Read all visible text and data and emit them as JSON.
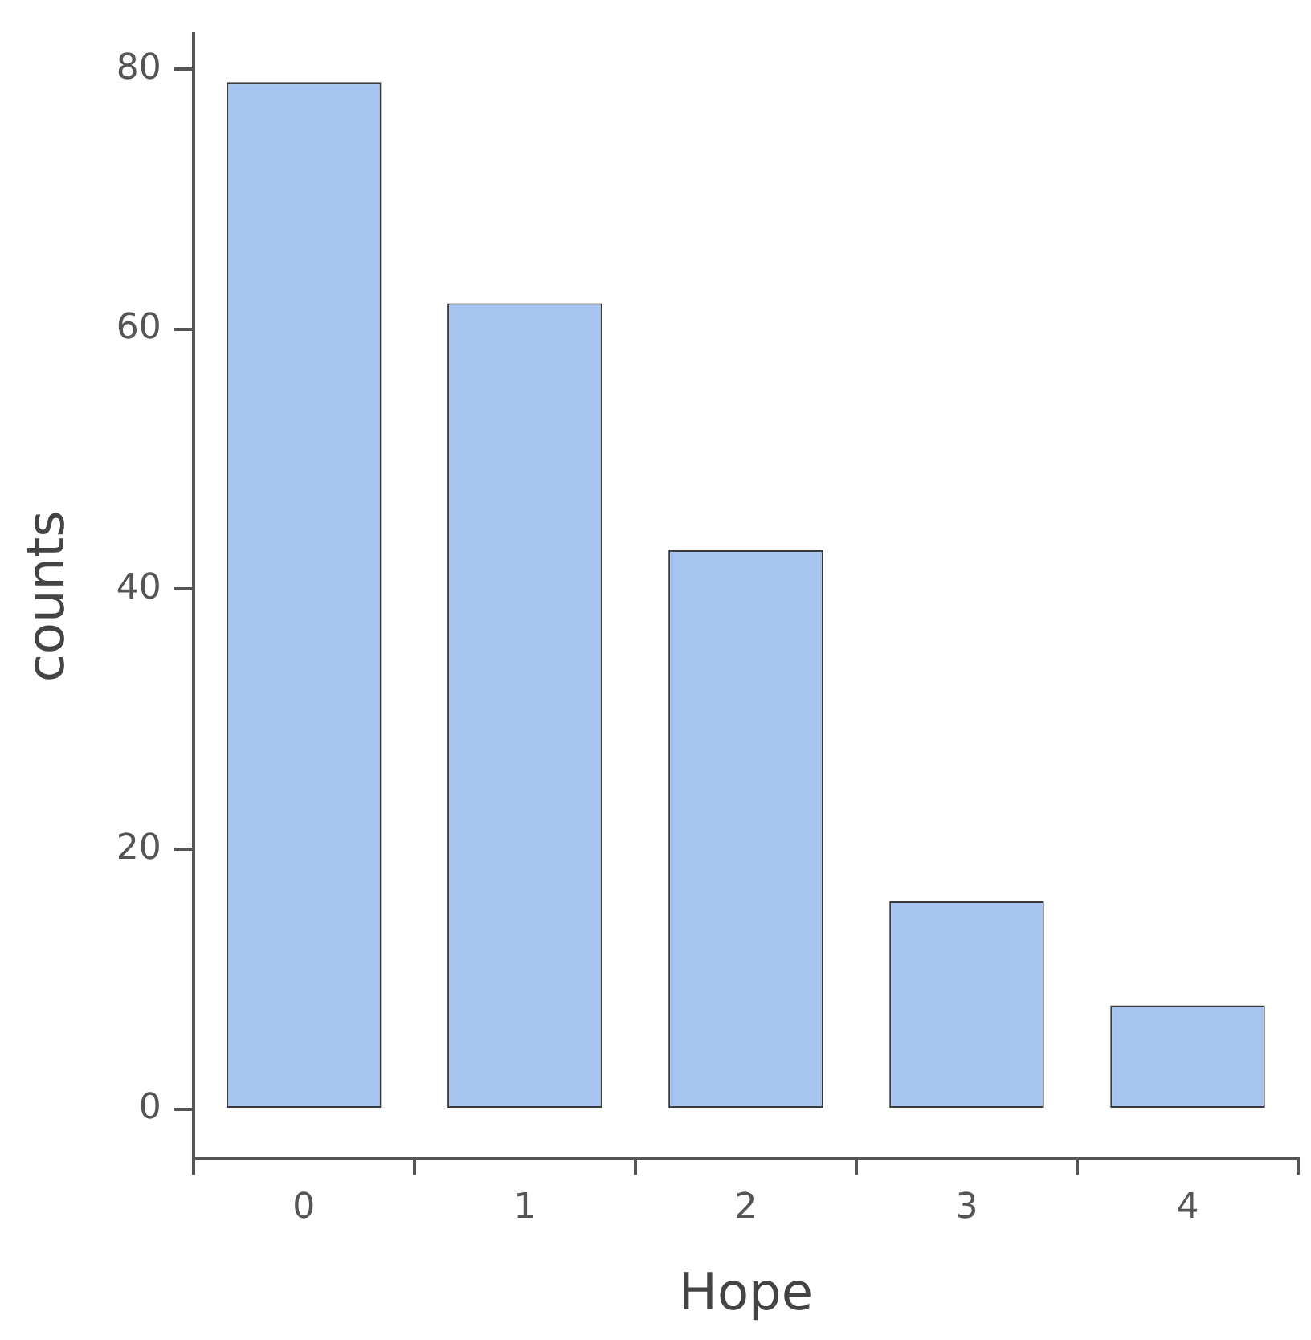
{
  "chart_data": {
    "type": "bar",
    "xlabel": "Hope",
    "ylabel": "counts",
    "categories": [
      "0",
      "1",
      "2",
      "3",
      "4"
    ],
    "values": [
      79,
      62,
      43,
      16,
      8
    ],
    "color": "#a6c4f0",
    "ylim": [
      -3.8,
      82.7
    ],
    "yticks": [
      0,
      20,
      40,
      60,
      80
    ],
    "grid": false,
    "legend": false
  }
}
